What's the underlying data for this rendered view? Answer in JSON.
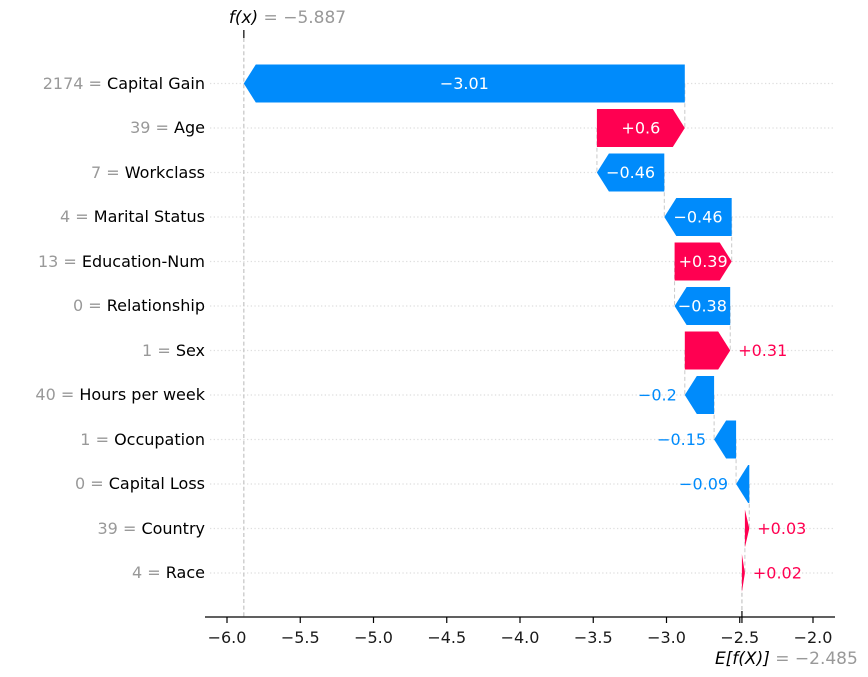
{
  "chart_data": {
    "type": "bar",
    "subtype": "shap-waterfall",
    "title": {
      "fx": "f(x)",
      "eq": " = −5.887"
    },
    "fx_value": -5.887,
    "base": {
      "label": "E[f(X)]",
      "eq": " = −2.485"
    },
    "base_value": -2.485,
    "eq_separator": " = ",
    "xlabel": "",
    "ylabel": "",
    "xlim": [
      -6.15,
      -1.85
    ],
    "grid": "dotted-row-guides",
    "legend": "none",
    "colors": {
      "positive": "#ff0051",
      "negative": "#008bfb",
      "inside_bar_text": "#ffffff",
      "muted_text": "#999999",
      "axis_text": "#1a1a1a",
      "dashed_line": "#b9b9b9",
      "row_guide": "#dedede"
    },
    "x_ticks": [
      {
        "v": -6.0,
        "label": "−6.0"
      },
      {
        "v": -5.5,
        "label": "−5.5"
      },
      {
        "v": -5.0,
        "label": "−5.0"
      },
      {
        "v": -4.5,
        "label": "−4.5"
      },
      {
        "v": -4.0,
        "label": "−4.0"
      },
      {
        "v": -3.5,
        "label": "−3.5"
      },
      {
        "v": -3.0,
        "label": "−3.0"
      },
      {
        "v": -2.5,
        "label": "−2.5"
      },
      {
        "v": -2.0,
        "label": "−2.0"
      }
    ],
    "features": [
      {
        "value": "2174",
        "name": "Capital Gain",
        "shap": -3.01,
        "label": "−3.01"
      },
      {
        "value": "39",
        "name": "Age",
        "shap": 0.6,
        "label": "+0.6"
      },
      {
        "value": "7",
        "name": "Workclass",
        "shap": -0.46,
        "label": "−0.46"
      },
      {
        "value": "4",
        "name": "Marital Status",
        "shap": -0.46,
        "label": "−0.46"
      },
      {
        "value": "13",
        "name": "Education-Num",
        "shap": 0.39,
        "label": "+0.39"
      },
      {
        "value": "0",
        "name": "Relationship",
        "shap": -0.38,
        "label": "−0.38"
      },
      {
        "value": "1",
        "name": "Sex",
        "shap": 0.31,
        "label": "+0.31"
      },
      {
        "value": "40",
        "name": "Hours per week",
        "shap": -0.2,
        "label": "−0.2"
      },
      {
        "value": "1",
        "name": "Occupation",
        "shap": -0.15,
        "label": "−0.15"
      },
      {
        "value": "0",
        "name": "Capital Loss",
        "shap": -0.09,
        "label": "−0.09"
      },
      {
        "value": "39",
        "name": "Country",
        "shap": 0.03,
        "label": "+0.03"
      },
      {
        "value": "4",
        "name": "Race",
        "shap": 0.02,
        "label": "+0.02"
      }
    ]
  }
}
